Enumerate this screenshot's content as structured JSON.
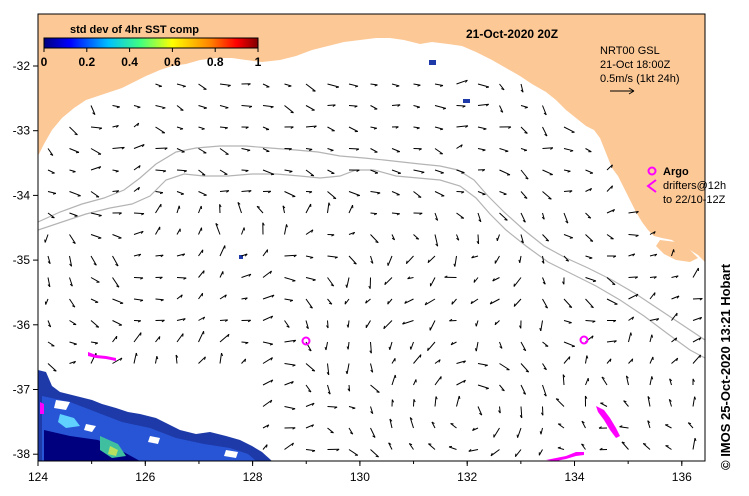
{
  "title": "21-Oct-2020 20Z",
  "colorbar": {
    "label": "std dev of 4hr SST comp",
    "ticks": [
      "0",
      "0.2",
      "0.4",
      "0.6",
      "0.8",
      "1"
    ],
    "colors": [
      "#00007f",
      "#0000ff",
      "#00bfff",
      "#40ff80",
      "#ffff00",
      "#ff8000",
      "#ff0000",
      "#7f0000"
    ]
  },
  "legend": {
    "line1": "NRT00 GSL",
    "line2": "21-Oct 18:00Z",
    "line3": "0.5m/s (1kt 24h)"
  },
  "argo": {
    "label": "Argo",
    "line1": "drifters@12h",
    "line2": "to 22/10-12Z",
    "marker_color": "#ff00ff"
  },
  "axes": {
    "x_ticks": [
      "124",
      "126",
      "128",
      "130",
      "132",
      "134",
      "136"
    ],
    "y_ticks": [
      "-32",
      "-33",
      "-34",
      "-35",
      "-36",
      "-37",
      "-38"
    ]
  },
  "side_text": "© IMOS 25-Oct-2020 13:21 Hobart",
  "colors": {
    "land": "#fcc896",
    "bathymetry": "#b4b4b4",
    "arrows": "#000000"
  }
}
